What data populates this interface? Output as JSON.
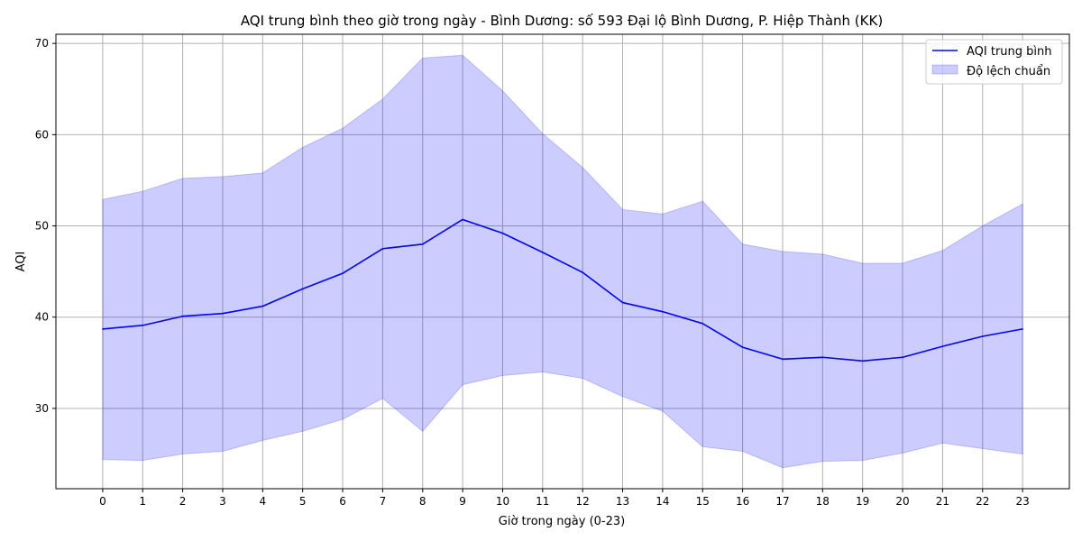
{
  "chart_data": {
    "type": "line",
    "title": "AQI trung bình theo giờ trong ngày - Bình Dương: số 593 Đại lộ Bình Dương, P. Hiệp Thành (KK)",
    "xlabel": "Giờ trong ngày (0-23)",
    "ylabel": "AQI",
    "x": [
      0,
      1,
      2,
      3,
      4,
      5,
      6,
      7,
      8,
      9,
      10,
      11,
      12,
      13,
      14,
      15,
      16,
      17,
      18,
      19,
      20,
      21,
      22,
      23
    ],
    "xlim": [
      -1.17,
      24.17
    ],
    "ylim": [
      21.2,
      71
    ],
    "yticks": [
      30,
      40,
      50,
      60,
      70
    ],
    "grid": true,
    "legend_position": "top-right",
    "series": [
      {
        "name": "AQI trung bình",
        "kind": "line",
        "color": "#0000ff",
        "values": [
          38.7,
          39.1,
          40.1,
          40.4,
          41.2,
          43.1,
          44.8,
          47.5,
          48.0,
          50.7,
          49.2,
          47.1,
          44.9,
          41.6,
          40.6,
          39.3,
          36.7,
          35.4,
          35.6,
          35.2,
          35.6,
          36.8,
          37.9,
          38.7
        ]
      },
      {
        "name": "Độ lệch chuẩn",
        "kind": "band",
        "color": "#0000ff",
        "lower": [
          24.4,
          24.3,
          25.0,
          25.3,
          26.5,
          27.5,
          28.8,
          31.1,
          27.5,
          32.6,
          33.6,
          34.0,
          33.3,
          31.3,
          29.7,
          25.8,
          25.3,
          23.5,
          24.2,
          24.3,
          25.1,
          26.2,
          25.6,
          25.0
        ],
        "upper": [
          52.9,
          53.8,
          55.2,
          55.4,
          55.8,
          58.6,
          60.7,
          63.9,
          68.4,
          68.7,
          64.8,
          60.1,
          56.4,
          51.8,
          51.3,
          52.7,
          48.0,
          47.2,
          46.9,
          45.9,
          45.9,
          47.3,
          50.0,
          52.4
        ]
      }
    ]
  }
}
